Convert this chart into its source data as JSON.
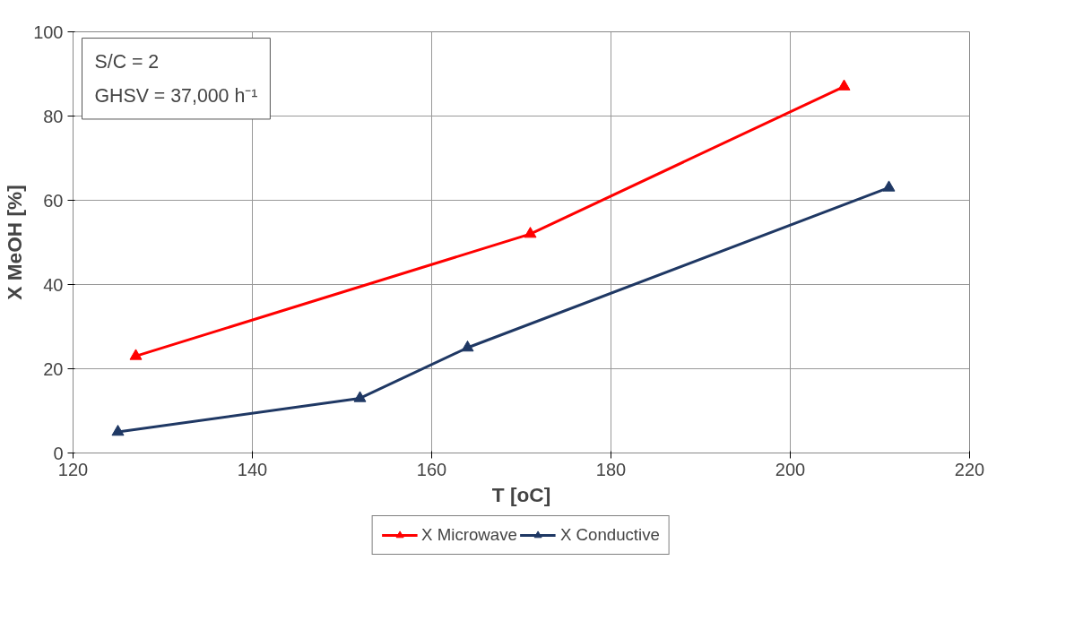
{
  "chart_data": {
    "type": "line",
    "xlabel": "T [oC]",
    "ylabel": "X MeOH [%]",
    "xlim": [
      120,
      220
    ],
    "xticks": [
      120,
      140,
      160,
      180,
      200,
      220
    ],
    "ylim": [
      0,
      100
    ],
    "yticks": [
      0,
      20,
      40,
      60,
      80,
      100
    ],
    "grid": true,
    "legend": "bottom",
    "marker": "triangle",
    "line_style": "solid",
    "annotations": [
      "S/C = 2",
      "GHSV = 37,000 h⁻¹"
    ],
    "series": [
      {
        "name": "X Microwave",
        "color": "#ff0000",
        "x": [
          127,
          171,
          206
        ],
        "values": [
          23,
          52,
          87
        ]
      },
      {
        "name": "X Conductive",
        "color": "#1f3864",
        "x": [
          125,
          152,
          164,
          211
        ],
        "values": [
          5,
          13,
          25,
          63
        ]
      }
    ]
  }
}
